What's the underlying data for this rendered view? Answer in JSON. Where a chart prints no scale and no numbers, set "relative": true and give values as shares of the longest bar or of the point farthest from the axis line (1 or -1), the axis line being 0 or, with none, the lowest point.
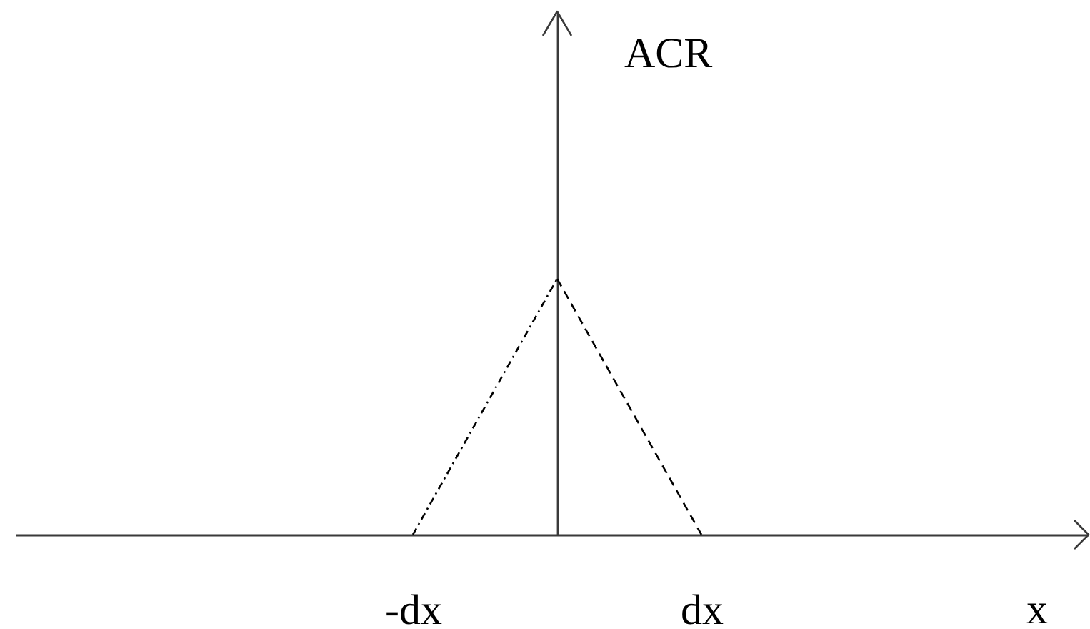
{
  "chart_data": {
    "type": "line",
    "relative": true,
    "categories": [
      "-dx",
      null,
      "dx"
    ],
    "series": [
      {
        "values": [
          0,
          1,
          null
        ],
        "color": "#000000",
        "line_style": "dashdot"
      },
      {
        "values": [
          null,
          1,
          0
        ],
        "color": "#000000",
        "line_style": "dashed"
      }
    ],
    "annotations": [
      "ACR",
      "x"
    ]
  }
}
